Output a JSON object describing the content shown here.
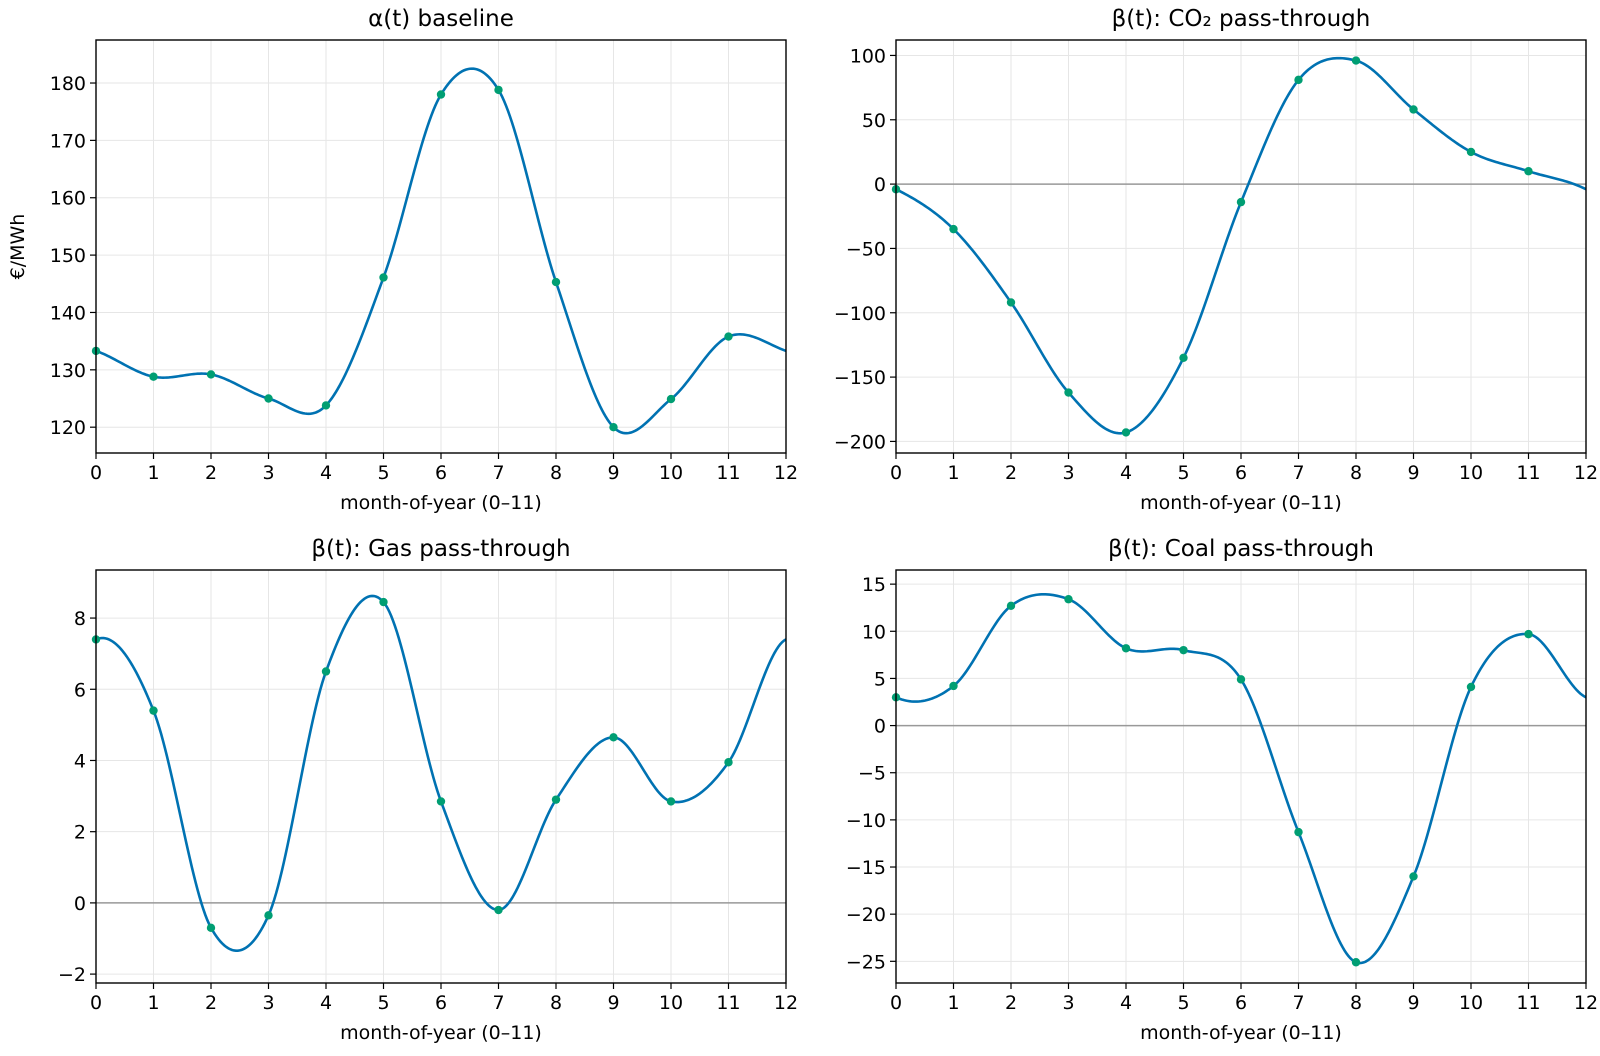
{
  "figure": {
    "background": "#ffffff",
    "line_color": "#0072b2",
    "marker_color": "#009e73",
    "grid_color": "#e6e6e6",
    "zero_line_color": "#999999"
  },
  "chart_data": [
    {
      "type": "line",
      "title": "α(t) baseline",
      "xlabel": "month-of-year (0–11)",
      "ylabel": "€/MWh",
      "xlim": [
        0,
        12
      ],
      "ylim": [
        115.5,
        187.5
      ],
      "xticks": [
        0,
        1,
        2,
        3,
        4,
        5,
        6,
        7,
        8,
        9,
        10,
        11,
        12
      ],
      "yticks": [
        120,
        130,
        140,
        150,
        160,
        170,
        180
      ],
      "grid": true,
      "zero_line": false,
      "periodic": true,
      "points": {
        "x": [
          0,
          1,
          2,
          3,
          4,
          5,
          6,
          7,
          8,
          9,
          10,
          11
        ],
        "y": [
          133.3,
          128.8,
          129.2,
          125.0,
          123.8,
          146.1,
          178.0,
          178.8,
          145.3,
          120.0,
          124.9,
          135.8
        ]
      }
    },
    {
      "type": "line",
      "title": "β(t): CO₂ pass-through",
      "xlabel": "month-of-year (0–11)",
      "ylabel": "",
      "xlim": [
        0,
        12
      ],
      "ylim": [
        -209,
        112
      ],
      "xticks": [
        0,
        1,
        2,
        3,
        4,
        5,
        6,
        7,
        8,
        9,
        10,
        11,
        12
      ],
      "yticks": [
        -200,
        -150,
        -100,
        -50,
        0,
        50,
        100
      ],
      "ytick_labels": [
        "−200",
        "−150",
        "−100",
        "−50",
        "0",
        "50",
        "100"
      ],
      "grid": true,
      "zero_line": true,
      "periodic": true,
      "points": {
        "x": [
          0,
          1,
          2,
          3,
          4,
          5,
          6,
          7,
          8,
          9,
          10,
          11
        ],
        "y": [
          -4,
          -35,
          -92,
          -162,
          -193,
          -135,
          -14,
          81,
          96,
          58,
          25,
          10
        ]
      }
    },
    {
      "type": "line",
      "title": "β(t): Gas pass-through",
      "xlabel": "month-of-year (0–11)",
      "ylabel": "",
      "xlim": [
        0,
        12
      ],
      "ylim": [
        -2.25,
        9.35
      ],
      "xticks": [
        0,
        1,
        2,
        3,
        4,
        5,
        6,
        7,
        8,
        9,
        10,
        11,
        12
      ],
      "yticks": [
        -2,
        0,
        2,
        4,
        6,
        8
      ],
      "ytick_labels": [
        "−2",
        "0",
        "2",
        "4",
        "6",
        "8"
      ],
      "grid": true,
      "zero_line": true,
      "periodic": true,
      "points": {
        "x": [
          0,
          1,
          2,
          3,
          4,
          5,
          6,
          7,
          8,
          9,
          10,
          11
        ],
        "y": [
          7.4,
          5.4,
          -0.7,
          -0.35,
          6.5,
          8.45,
          2.85,
          -0.2,
          2.9,
          4.65,
          2.85,
          3.95
        ]
      }
    },
    {
      "type": "line",
      "title": "β(t): Coal pass-through",
      "xlabel": "month-of-year (0–11)",
      "ylabel": "",
      "xlim": [
        0,
        12
      ],
      "ylim": [
        -27.3,
        16.5
      ],
      "xticks": [
        0,
        1,
        2,
        3,
        4,
        5,
        6,
        7,
        8,
        9,
        10,
        11,
        12
      ],
      "yticks": [
        -25,
        -20,
        -15,
        -10,
        -5,
        0,
        5,
        10,
        15
      ],
      "ytick_labels": [
        "−25",
        "−20",
        "−15",
        "−10",
        "−5",
        "0",
        "5",
        "10",
        "15"
      ],
      "grid": true,
      "zero_line": true,
      "periodic": true,
      "points": {
        "x": [
          0,
          1,
          2,
          3,
          4,
          5,
          6,
          7,
          8,
          9,
          10,
          11
        ],
        "y": [
          3.0,
          4.2,
          12.7,
          13.4,
          8.2,
          8.0,
          4.9,
          -11.3,
          -25.1,
          -16.0,
          4.1,
          9.7
        ]
      }
    }
  ]
}
